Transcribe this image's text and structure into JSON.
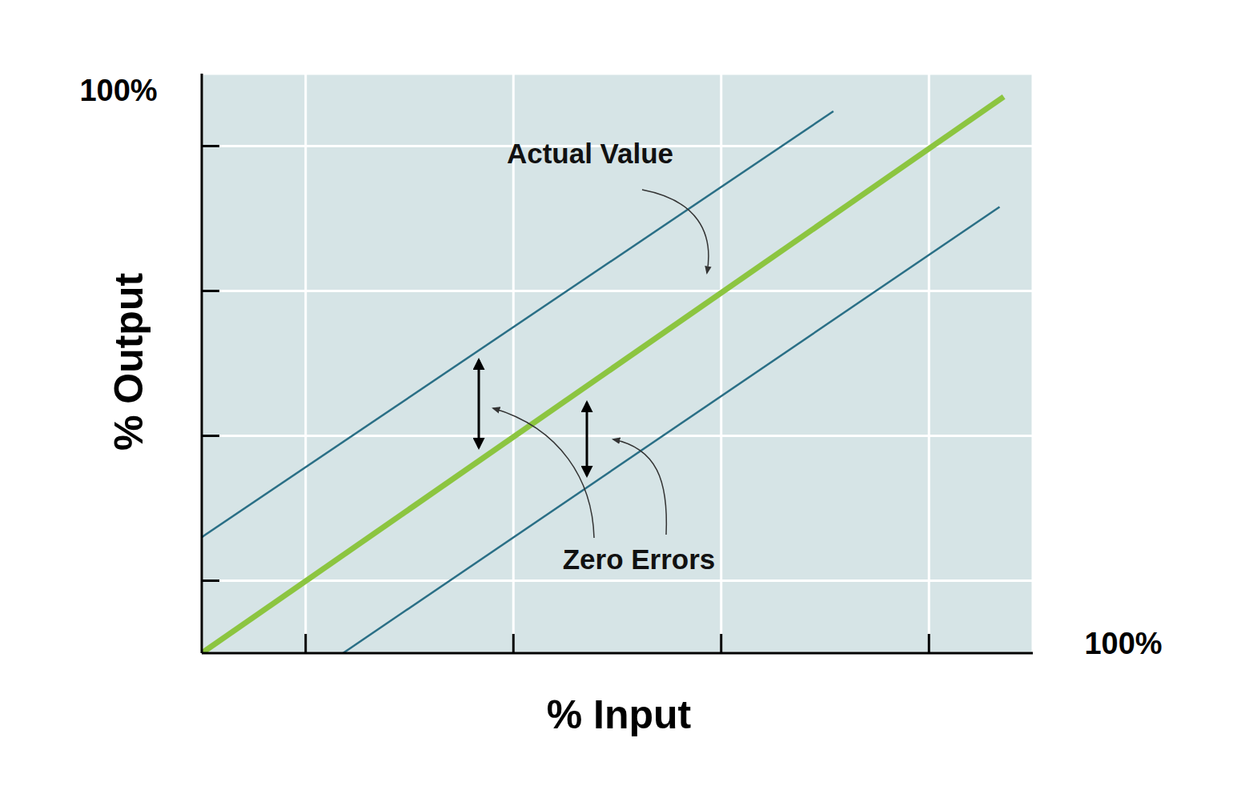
{
  "chart_data": {
    "type": "line",
    "x_label": "% Input",
    "y_label": "% Output",
    "xlim": [
      0,
      100
    ],
    "ylim": [
      0,
      100
    ],
    "xticks": [
      12.5,
      37.5,
      62.5,
      87.5
    ],
    "yticks": [
      12.5,
      37.5,
      62.5,
      87.5
    ],
    "tick_labels": false,
    "grid": true,
    "series": [
      {
        "color": "#2a6f86",
        "x": [
          0,
          76
        ],
        "values": [
          20,
          93.5
        ]
      },
      {
        "color": "#8cc540",
        "x": [
          0,
          96.5
        ],
        "values": [
          0,
          96
        ]
      },
      {
        "color": "#2a6f86",
        "x": [
          17,
          96
        ],
        "values": [
          0,
          77
        ]
      }
    ],
    "annotations": [
      {
        "text": "100%",
        "axis": "x"
      },
      {
        "text": "100%",
        "axis": "y"
      },
      {
        "text": "Actual Value"
      },
      {
        "text": "Zero Errors"
      }
    ]
  }
}
